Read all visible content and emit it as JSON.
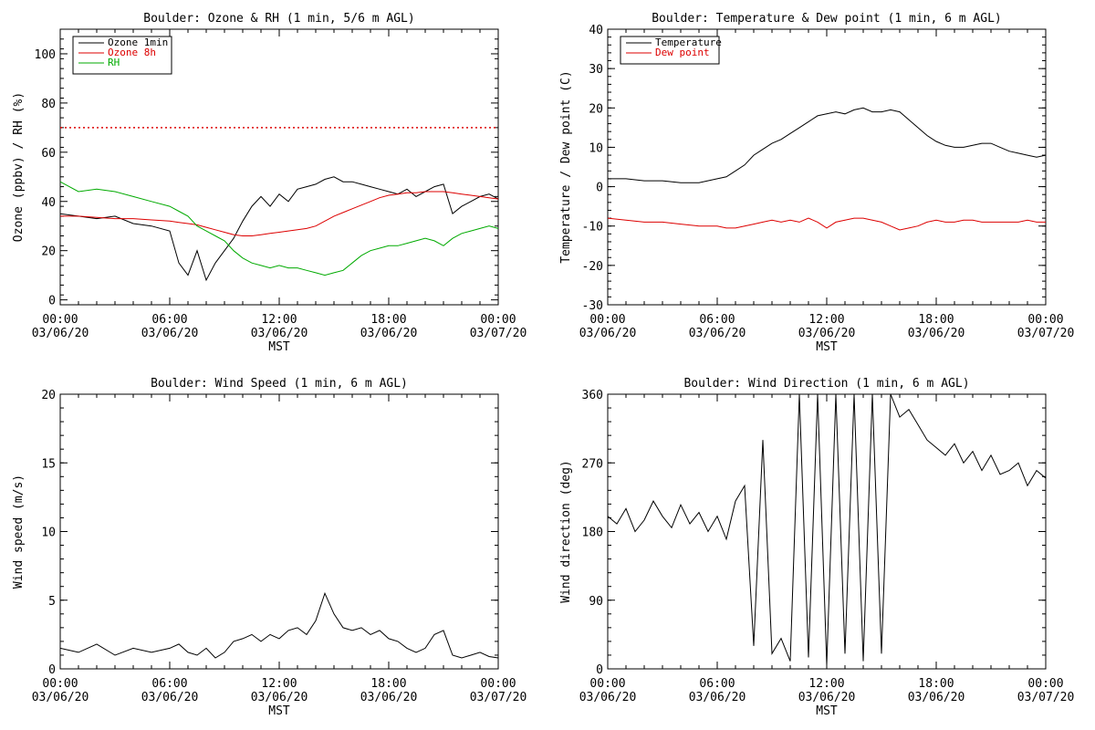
{
  "chart_data": [
    {
      "type": "line",
      "title": "Boulder: Ozone & RH (1 min, 5/6 m AGL)",
      "xlabel": "MST",
      "ylabel": "Ozone (ppbv) / RH (%)",
      "xlim": [
        "2020-03-06T00:00",
        "2020-03-07T00:00"
      ],
      "ylim": [
        -2,
        110
      ],
      "yticks": [
        0,
        20,
        40,
        60,
        80,
        100
      ],
      "xticks": [
        [
          "00:00",
          "03/06/20"
        ],
        [
          "06:00",
          "03/06/20"
        ],
        [
          "12:00",
          "03/06/20"
        ],
        [
          "18:00",
          "03/06/20"
        ],
        [
          "00:00",
          "03/07/20"
        ]
      ],
      "legend": "top-left",
      "reference_line": {
        "y": 70,
        "color": "#dd0000",
        "style": "dotted"
      },
      "x_hours": [
        0,
        1,
        2,
        3,
        4,
        5,
        6,
        6.5,
        7,
        7.5,
        8,
        8.5,
        9,
        9.5,
        10,
        10.5,
        11,
        11.5,
        12,
        12.5,
        13,
        13.5,
        14,
        14.5,
        15,
        15.5,
        16,
        16.5,
        17,
        17.5,
        18,
        18.5,
        19,
        19.5,
        20,
        20.5,
        21,
        21.5,
        22,
        22.5,
        23,
        23.5,
        24
      ],
      "series": [
        {
          "name": "Ozone 1min",
          "color": "#000000",
          "values": [
            35,
            34,
            33,
            34,
            31,
            30,
            28,
            15,
            10,
            20,
            8,
            15,
            20,
            25,
            32,
            38,
            42,
            38,
            43,
            40,
            45,
            46,
            47,
            49,
            50,
            48,
            48,
            47,
            46,
            45,
            44,
            43,
            45,
            42,
            44,
            46,
            47,
            35,
            38,
            40,
            42,
            43,
            41
          ]
        },
        {
          "name": "Ozone 8h",
          "color": "#dd0000",
          "values": [
            34,
            34,
            33.5,
            33,
            33,
            32.5,
            32,
            31.5,
            31,
            30.5,
            29.5,
            28.5,
            27.5,
            26.5,
            26,
            26,
            26.5,
            27,
            27.5,
            28,
            28.5,
            29,
            30,
            32,
            34,
            35.5,
            37,
            38.5,
            40,
            41.5,
            42.5,
            43,
            43.5,
            43.5,
            44,
            44,
            44,
            43.5,
            43,
            42.5,
            42,
            41.5,
            41
          ]
        },
        {
          "name": "RH",
          "color": "#00aa00",
          "values": [
            48,
            44,
            45,
            44,
            42,
            40,
            38,
            36,
            34,
            30,
            28,
            26,
            24,
            20,
            17,
            15,
            14,
            13,
            14,
            13,
            13,
            12,
            11,
            10,
            11,
            12,
            15,
            18,
            20,
            21,
            22,
            22,
            23,
            24,
            25,
            24,
            22,
            25,
            27,
            28,
            29,
            30,
            29
          ]
        }
      ]
    },
    {
      "type": "line",
      "title": "Boulder: Temperature & Dew point (1 min, 6 m AGL)",
      "xlabel": "MST",
      "ylabel": "Temperature / Dew point (C)",
      "xlim": [
        "2020-03-06T00:00",
        "2020-03-07T00:00"
      ],
      "ylim": [
        -30,
        40
      ],
      "yticks": [
        -30,
        -20,
        -10,
        0,
        10,
        20,
        30,
        40
      ],
      "xticks": [
        [
          "00:00",
          "03/06/20"
        ],
        [
          "06:00",
          "03/06/20"
        ],
        [
          "12:00",
          "03/06/20"
        ],
        [
          "18:00",
          "03/06/20"
        ],
        [
          "00:00",
          "03/07/20"
        ]
      ],
      "legend": "top-left",
      "x_hours": [
        0,
        1,
        2,
        3,
        4,
        5,
        6,
        6.5,
        7,
        7.5,
        8,
        8.5,
        9,
        9.5,
        10,
        10.5,
        11,
        11.5,
        12,
        12.5,
        13,
        13.5,
        14,
        14.5,
        15,
        15.5,
        16,
        16.5,
        17,
        17.5,
        18,
        18.5,
        19,
        19.5,
        20,
        20.5,
        21,
        21.5,
        22,
        22.5,
        23,
        23.5,
        24
      ],
      "series": [
        {
          "name": "Temperature",
          "color": "#000000",
          "values": [
            2,
            2,
            1.5,
            1.5,
            1,
            1,
            2,
            2.5,
            4,
            5.5,
            8,
            9.5,
            11,
            12,
            13.5,
            15,
            16.5,
            18,
            18.5,
            19,
            18.5,
            19.5,
            20,
            19,
            19,
            19.5,
            19,
            17,
            15,
            13,
            11.5,
            10.5,
            10,
            10,
            10.5,
            11,
            11,
            10,
            9,
            8.5,
            8,
            7.5,
            8
          ]
        },
        {
          "name": "Dew point",
          "color": "#dd0000",
          "values": [
            -8,
            -8.5,
            -9,
            -9,
            -9.5,
            -10,
            -10,
            -10.5,
            -10.5,
            -10,
            -9.5,
            -9,
            -8.5,
            -9,
            -8.5,
            -9,
            -8,
            -9,
            -10.5,
            -9,
            -8.5,
            -8,
            -8,
            -8.5,
            -9,
            -10,
            -11,
            -10.5,
            -10,
            -9,
            -8.5,
            -9,
            -9,
            -8.5,
            -8.5,
            -9,
            -9,
            -9,
            -9,
            -9,
            -8.5,
            -9,
            -9
          ]
        }
      ]
    },
    {
      "type": "line",
      "title": "Boulder: Wind Speed (1 min, 6 m AGL)",
      "xlabel": "MST",
      "ylabel": "Wind speed (m/s)",
      "xlim": [
        "2020-03-06T00:00",
        "2020-03-07T00:00"
      ],
      "ylim": [
        0,
        20
      ],
      "yticks": [
        0,
        5,
        10,
        15,
        20
      ],
      "xticks": [
        [
          "00:00",
          "03/06/20"
        ],
        [
          "06:00",
          "03/06/20"
        ],
        [
          "12:00",
          "03/06/20"
        ],
        [
          "18:00",
          "03/06/20"
        ],
        [
          "00:00",
          "03/07/20"
        ]
      ],
      "x_hours": [
        0,
        1,
        2,
        3,
        4,
        5,
        6,
        6.5,
        7,
        7.5,
        8,
        8.5,
        9,
        9.5,
        10,
        10.5,
        11,
        11.5,
        12,
        12.5,
        13,
        13.5,
        14,
        14.5,
        15,
        15.5,
        16,
        16.5,
        17,
        17.5,
        18,
        18.5,
        19,
        19.5,
        20,
        20.5,
        21,
        21.5,
        22,
        22.5,
        23,
        23.5,
        24
      ],
      "series": [
        {
          "name": "",
          "color": "#000000",
          "values": [
            1.5,
            1.2,
            1.8,
            1,
            1.5,
            1.2,
            1.5,
            1.8,
            1.2,
            1,
            1.5,
            0.8,
            1.2,
            2,
            2.2,
            2.5,
            2,
            2.5,
            2.2,
            2.8,
            3,
            2.5,
            3.5,
            5.5,
            4,
            3,
            2.8,
            3,
            2.5,
            2.8,
            2.2,
            2,
            1.5,
            1.2,
            1.5,
            2.5,
            2.8,
            1,
            0.8,
            1,
            1.2,
            0.9,
            0.8
          ]
        }
      ]
    },
    {
      "type": "line",
      "title": "Boulder: Wind Direction (1 min, 6 m AGL)",
      "xlabel": "MST",
      "ylabel": "Wind direction (deg)",
      "xlim": [
        "2020-03-06T00:00",
        "2020-03-07T00:00"
      ],
      "ylim": [
        0,
        360
      ],
      "yticks": [
        0,
        90,
        180,
        270,
        360
      ],
      "xticks": [
        [
          "00:00",
          "03/06/20"
        ],
        [
          "06:00",
          "03/06/20"
        ],
        [
          "12:00",
          "03/06/20"
        ],
        [
          "18:00",
          "03/06/20"
        ],
        [
          "00:00",
          "03/07/20"
        ]
      ],
      "x_hours": [
        0,
        0.5,
        1,
        1.5,
        2,
        2.5,
        3,
        3.5,
        4,
        4.5,
        5,
        5.5,
        6,
        6.5,
        7,
        7.5,
        8,
        8.5,
        9,
        9.5,
        10,
        10.5,
        11,
        11.5,
        12,
        12.5,
        13,
        13.5,
        14,
        14.5,
        15,
        15.5,
        16,
        16.5,
        17,
        17.5,
        18,
        18.5,
        19,
        19.5,
        20,
        20.5,
        21,
        21.5,
        22,
        22.5,
        23,
        23.5,
        24
      ],
      "series": [
        {
          "name": "",
          "color": "#000000",
          "values": [
            200,
            190,
            210,
            180,
            195,
            220,
            200,
            185,
            215,
            190,
            205,
            180,
            200,
            170,
            220,
            240,
            30,
            300,
            20,
            40,
            10,
            360,
            15,
            360,
            5,
            360,
            20,
            360,
            10,
            360,
            20,
            360,
            330,
            340,
            320,
            300,
            290,
            280,
            295,
            270,
            285,
            260,
            280,
            255,
            260,
            270,
            240,
            260,
            250
          ]
        }
      ]
    }
  ]
}
